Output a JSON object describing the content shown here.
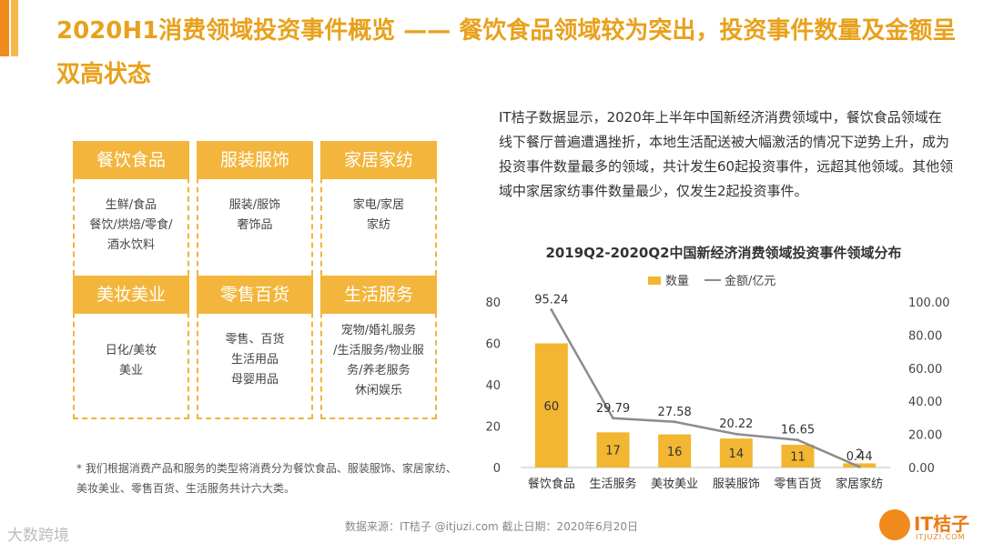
{
  "header": {
    "title": "2020H1消费领域投资事件概览 —— 餐饮食品领域较为突出，投资事件数量及金额呈双高状态"
  },
  "categories": [
    {
      "name": "餐饮食品",
      "items": [
        "生鲜/食品",
        "餐饮/烘焙/零食/",
        "酒水饮料"
      ]
    },
    {
      "name": "服装服饰",
      "items": [
        "服装/服饰",
        "奢饰品"
      ]
    },
    {
      "name": "家居家纺",
      "items": [
        "家电/家居",
        "家纺"
      ]
    },
    {
      "name": "美妆美业",
      "items": [
        "日化/美妆",
        "美业"
      ]
    },
    {
      "name": "零售百货",
      "items": [
        "零售、百货",
        "生活用品",
        "母婴用品"
      ]
    },
    {
      "name": "生活服务",
      "items": [
        "宠物/婚礼服务",
        "/生活服务/物业服",
        "务/养老服务",
        "休闲娱乐"
      ]
    }
  ],
  "footnote": "* 我们根据消费产品和服务的类型将消费分为餐饮食品、服装服饰、家居家纺、美妆美业、零售百货、生活服务共计六大类。",
  "description": "IT桔子数据显示，2020年上半年中国新经济消费领域中，餐饮食品领域在线下餐厅普遍遭遇挫折，本地生活配送被大幅激活的情况下逆势上升，成为投资事件数量最多的领域，共计发生60起投资事件，远超其他领域。其他领域中家居家纺事件数量最少，仅发生2起投资事件。",
  "chart_data": {
    "type": "bar",
    "title": "2019Q2-2020Q2中国新经济消费领域投资事件领域分布",
    "categories": [
      "餐饮食品",
      "生活服务",
      "美妆美业",
      "服装服饰",
      "零售百货",
      "家居家纺"
    ],
    "series": [
      {
        "name": "数量",
        "type": "bar",
        "axis": "left",
        "values": [
          60,
          17,
          16,
          14,
          11,
          2
        ],
        "labels": [
          "60",
          "17",
          "16",
          "14",
          "11",
          "2"
        ]
      },
      {
        "name": "金额/亿元",
        "type": "line",
        "axis": "right",
        "values": [
          95.24,
          29.79,
          27.58,
          20.22,
          16.65,
          0.44
        ],
        "labels": [
          "95.24",
          "29.79",
          "27.58",
          "20.22",
          "16.65",
          "0.44"
        ]
      }
    ],
    "y_left": {
      "ylim": [
        0,
        80
      ],
      "ticks": [
        "0",
        "20",
        "40",
        "60",
        "80"
      ]
    },
    "y_right": {
      "ylim": [
        0,
        100
      ],
      "ticks": [
        "0.00",
        "20.00",
        "40.00",
        "60.00",
        "80.00",
        "100.00"
      ]
    },
    "legend_position": "top",
    "grid": false,
    "colors": {
      "bar": "#f2b632",
      "line": "#8c8c8c"
    }
  },
  "source": "数据来源：IT桔子 @itjuzi.com  截止日期：2020年6月20日",
  "watermark_left": "大数跨境",
  "logo": {
    "name": "IT桔子",
    "sub": "ITJUZI.COM"
  },
  "colors": {
    "accent": "#e8a11c",
    "box_head": "#f3b53c",
    "box_border": "#f0b43a"
  }
}
